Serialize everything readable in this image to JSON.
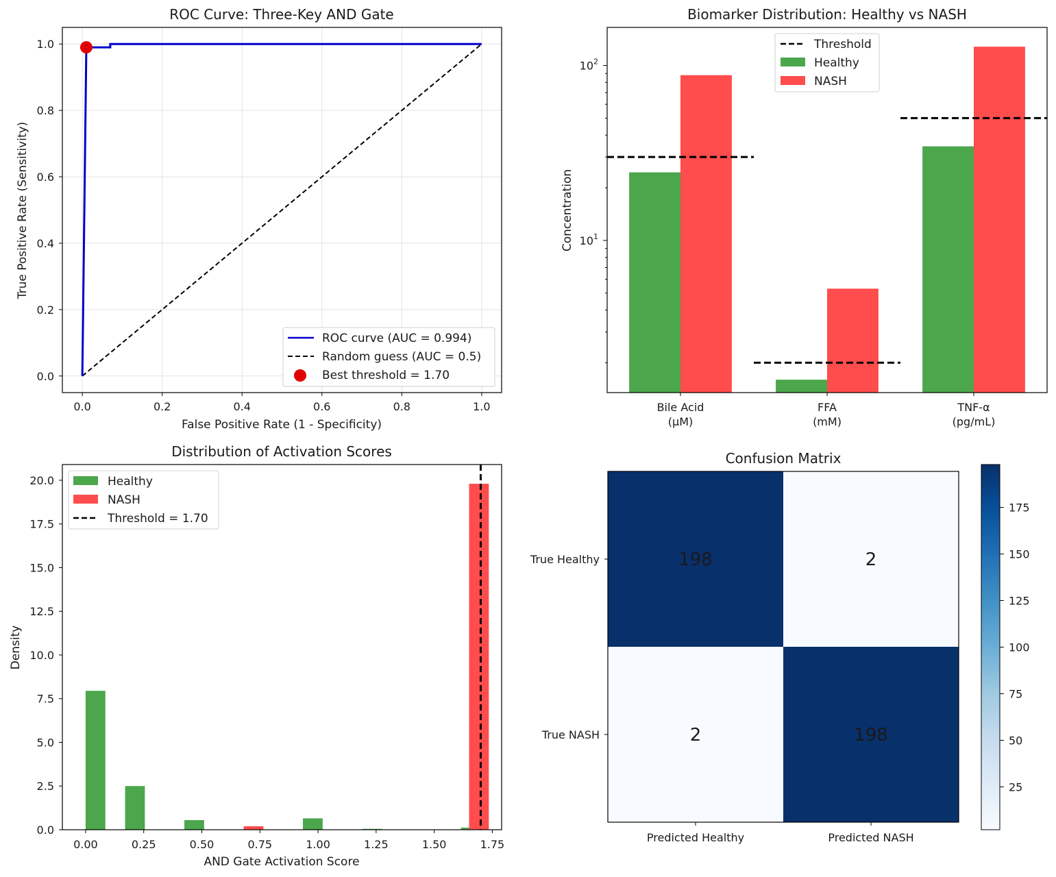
{
  "colors": {
    "healthy": "#4ca64c",
    "nash": "#ff4c4c",
    "roc": "#0000cc",
    "best": "#e00000",
    "dark": "#08306b",
    "light": "#f7fbff"
  },
  "chart_data": [
    {
      "id": "roc",
      "type": "line",
      "title": "ROC Curve: Three-Key AND Gate",
      "xlabel": "False Positive Rate (1 - Specificity)",
      "ylabel": "True Positive Rate (Sensitivity)",
      "xlim": [
        -0.05,
        1.05
      ],
      "ylim": [
        -0.05,
        1.05
      ],
      "xticks": [
        "0.0",
        "0.2",
        "0.4",
        "0.6",
        "0.8",
        "1.0"
      ],
      "yticks": [
        "0.0",
        "0.2",
        "0.4",
        "0.6",
        "0.8",
        "1.0"
      ],
      "grid": true,
      "legend_position": "lower-right",
      "series": [
        {
          "name": "ROC curve (AUC = 0.994)",
          "style": "solid",
          "x": [
            0.0,
            0.01,
            0.01,
            0.07,
            0.07,
            1.0
          ],
          "y": [
            0.0,
            0.99,
            0.99,
            0.99,
            1.0,
            1.0
          ]
        },
        {
          "name": "Random guess (AUC = 0.5)",
          "style": "dashed",
          "x": [
            0.0,
            1.0
          ],
          "y": [
            0.0,
            1.0
          ]
        }
      ],
      "points": [
        {
          "name": "Best threshold = 1.70",
          "x": 0.01,
          "y": 0.99
        }
      ]
    },
    {
      "id": "biomarker",
      "type": "bar",
      "scale": "log",
      "title": "Biomarker Distribution: Healthy vs NASH",
      "ylabel": "Concentration",
      "categories": [
        [
          "Bile Acid",
          "(μM)"
        ],
        [
          "FFA",
          "(mM)"
        ],
        [
          "TNF-α",
          "(pg/mL)"
        ]
      ],
      "ylim": [
        1.35,
        165
      ],
      "yticks": [
        {
          "base": "10",
          "exp": "1",
          "value": 10
        },
        {
          "base": "10",
          "exp": "2",
          "value": 100
        }
      ],
      "legend_position": "upper-center",
      "series": [
        {
          "name": "Healthy",
          "values": [
            24.5,
            1.6,
            34.5
          ]
        },
        {
          "name": "NASH",
          "values": [
            88,
            5.3,
            128
          ]
        }
      ],
      "thresholds": {
        "name": "Threshold",
        "values": [
          30,
          2,
          50
        ]
      }
    },
    {
      "id": "activation",
      "type": "bar",
      "title": "Distribution of Activation Scores",
      "xlabel": "AND Gate Activation Score",
      "ylabel": "Density",
      "xlim": [
        -0.1,
        1.79
      ],
      "ylim": [
        0,
        20.9
      ],
      "xticks": [
        "0.00",
        "0.25",
        "0.50",
        "0.75",
        "1.00",
        "1.25",
        "1.50",
        "1.75"
      ],
      "yticks": [
        "0.0",
        "2.5",
        "5.0",
        "7.5",
        "10.0",
        "12.5",
        "15.0",
        "17.5",
        "20.0"
      ],
      "legend_position": "upper-left",
      "series": [
        {
          "name": "Healthy",
          "bins": [
            0.0,
            0.17,
            0.425,
            0.935,
            1.19,
            1.615
          ],
          "values": [
            7.95,
            2.5,
            0.55,
            0.65,
            0.05,
            0.12
          ]
        },
        {
          "name": "NASH",
          "bins": [
            0.68,
            1.65
          ],
          "values": [
            0.2,
            19.8
          ]
        }
      ],
      "threshold": {
        "name": "Threshold = 1.70",
        "value": 1.7
      }
    },
    {
      "id": "confusion",
      "type": "heatmap",
      "title": "Confusion Matrix",
      "row_labels": [
        "True Healthy",
        "True NASH"
      ],
      "col_labels": [
        "Predicted Healthy",
        "Predicted NASH"
      ],
      "values": [
        [
          198,
          2
        ],
        [
          2,
          198
        ]
      ],
      "colorbar_ticks": [
        "25",
        "50",
        "75",
        "100",
        "125",
        "150",
        "175"
      ],
      "colorbar_range": [
        2,
        198
      ]
    }
  ]
}
